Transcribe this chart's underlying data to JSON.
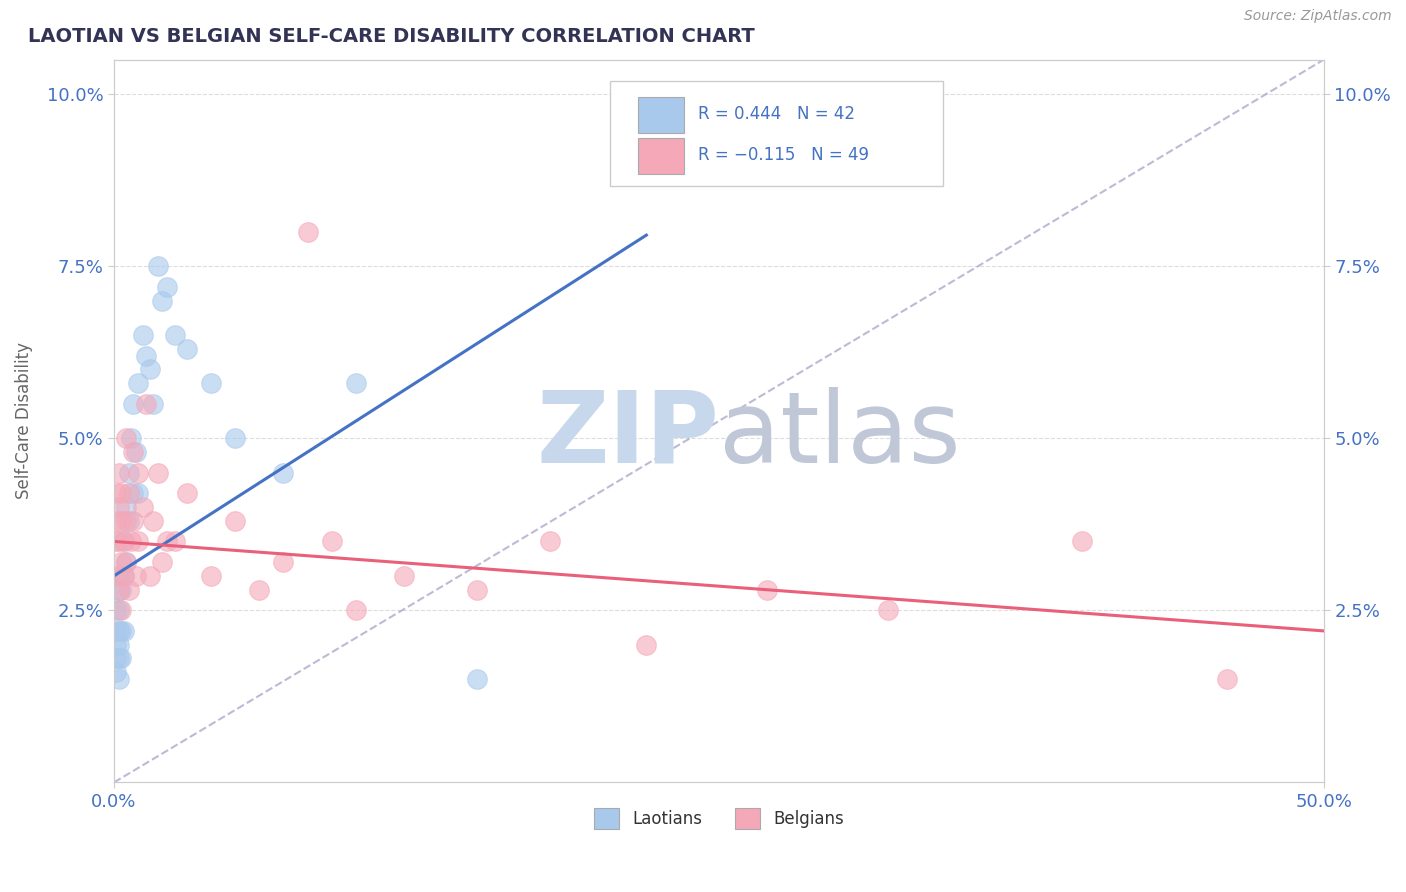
{
  "title": "LAOTIAN VS BELGIAN SELF-CARE DISABILITY CORRELATION CHART",
  "source": "Source: ZipAtlas.com",
  "ylabel": "Self-Care Disability",
  "ytick_labels": [
    "2.5%",
    "5.0%",
    "7.5%",
    "10.0%"
  ],
  "ytick_values": [
    0.025,
    0.05,
    0.075,
    0.1
  ],
  "xlim": [
    0.0,
    0.5
  ],
  "ylim": [
    0.0,
    0.105
  ],
  "laotian_color": "#A8C8EC",
  "belgian_color": "#F4A8B8",
  "laotian_line_color": "#4472C4",
  "belgian_line_color": "#E8607A",
  "R_laotian": 0.444,
  "N_laotian": 42,
  "R_belgian": -0.115,
  "N_belgian": 49,
  "laotian_x": [
    0.001,
    0.001,
    0.001,
    0.001,
    0.001,
    0.002,
    0.002,
    0.002,
    0.002,
    0.002,
    0.002,
    0.003,
    0.003,
    0.003,
    0.003,
    0.004,
    0.004,
    0.004,
    0.005,
    0.005,
    0.006,
    0.006,
    0.007,
    0.008,
    0.008,
    0.009,
    0.01,
    0.01,
    0.012,
    0.013,
    0.015,
    0.016,
    0.018,
    0.02,
    0.022,
    0.025,
    0.03,
    0.04,
    0.05,
    0.07,
    0.1,
    0.15
  ],
  "laotian_y": [
    0.022,
    0.018,
    0.025,
    0.02,
    0.016,
    0.022,
    0.028,
    0.02,
    0.018,
    0.015,
    0.025,
    0.03,
    0.022,
    0.028,
    0.018,
    0.035,
    0.03,
    0.022,
    0.04,
    0.032,
    0.038,
    0.045,
    0.05,
    0.042,
    0.055,
    0.048,
    0.058,
    0.042,
    0.065,
    0.062,
    0.06,
    0.055,
    0.075,
    0.07,
    0.072,
    0.065,
    0.063,
    0.058,
    0.05,
    0.045,
    0.058,
    0.015
  ],
  "belgian_x": [
    0.001,
    0.001,
    0.001,
    0.001,
    0.002,
    0.002,
    0.002,
    0.002,
    0.003,
    0.003,
    0.003,
    0.003,
    0.004,
    0.004,
    0.005,
    0.005,
    0.005,
    0.006,
    0.006,
    0.007,
    0.008,
    0.008,
    0.009,
    0.01,
    0.01,
    0.012,
    0.013,
    0.015,
    0.016,
    0.018,
    0.02,
    0.022,
    0.025,
    0.03,
    0.04,
    0.05,
    0.06,
    0.07,
    0.08,
    0.09,
    0.1,
    0.12,
    0.15,
    0.18,
    0.22,
    0.27,
    0.32,
    0.4,
    0.46
  ],
  "belgian_y": [
    0.038,
    0.042,
    0.035,
    0.03,
    0.04,
    0.028,
    0.035,
    0.045,
    0.032,
    0.038,
    0.025,
    0.042,
    0.035,
    0.03,
    0.05,
    0.038,
    0.032,
    0.028,
    0.042,
    0.035,
    0.048,
    0.038,
    0.03,
    0.045,
    0.035,
    0.04,
    0.055,
    0.03,
    0.038,
    0.045,
    0.032,
    0.035,
    0.035,
    0.042,
    0.03,
    0.038,
    0.028,
    0.032,
    0.08,
    0.035,
    0.025,
    0.03,
    0.028,
    0.035,
    0.02,
    0.028,
    0.025,
    0.035,
    0.015
  ],
  "background_color": "#FFFFFF",
  "grid_color": "#DDDDDD",
  "title_color": "#333355",
  "axis_label_color": "#4472C4",
  "watermark_color": "#C8D8EC"
}
